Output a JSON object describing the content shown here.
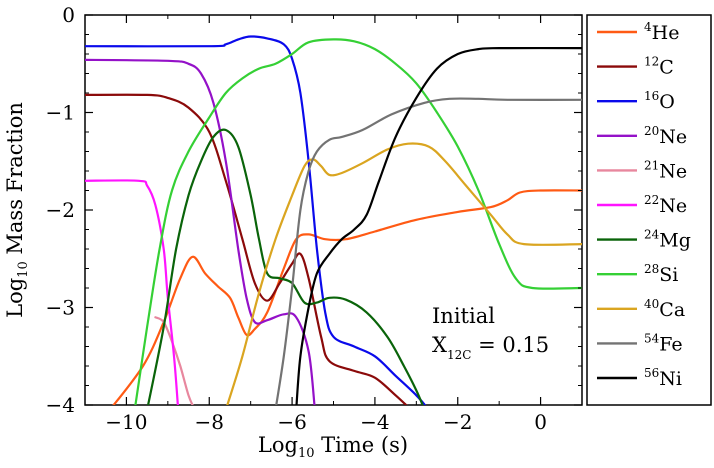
{
  "chart_data": {
    "type": "line",
    "xlabel_base": "Log",
    "xlabel_sub": "10",
    "xlabel_rest": " Time (s)",
    "ylabel_base": "Log",
    "ylabel_sub": "10",
    "ylabel_rest": " Mass Fraction",
    "xlim": [
      -11,
      1
    ],
    "ylim": [
      -4,
      0
    ],
    "xticks": [
      -10,
      -8,
      -6,
      -4,
      -2,
      0
    ],
    "xtick_labels": [
      "−10",
      "−8",
      "−6",
      "−4",
      "−2",
      "0"
    ],
    "yticks": [
      -4,
      -3,
      -2,
      -1,
      0
    ],
    "ytick_labels": [
      "−4",
      "−3",
      "−2",
      "−1",
      "0"
    ],
    "annotation": {
      "line1": "Initial",
      "x_label": "X",
      "x_sup": "12",
      "x_sub": "C",
      "value_text": " = 0.15"
    },
    "series": [
      {
        "mass": "4",
        "element": "He",
        "color": "#ff5a14",
        "points": [
          [
            -10.4,
            -4.05
          ],
          [
            -9.6,
            -3.6
          ],
          [
            -9.1,
            -3.15
          ],
          [
            -8.7,
            -2.7
          ],
          [
            -8.4,
            -2.48
          ],
          [
            -8.1,
            -2.65
          ],
          [
            -7.8,
            -2.78
          ],
          [
            -7.5,
            -2.9
          ],
          [
            -7.3,
            -3.1
          ],
          [
            -7.1,
            -3.28
          ],
          [
            -6.9,
            -3.22
          ],
          [
            -6.6,
            -3.05
          ],
          [
            -6.2,
            -2.6
          ],
          [
            -5.9,
            -2.3
          ],
          [
            -5.6,
            -2.25
          ],
          [
            -5.2,
            -2.3
          ],
          [
            -4.7,
            -2.3
          ],
          [
            -4,
            -2.22
          ],
          [
            -3,
            -2.1
          ],
          [
            -2,
            -2.02
          ],
          [
            -1.2,
            -1.97
          ],
          [
            -0.8,
            -1.9
          ],
          [
            -0.5,
            -1.82
          ],
          [
            0,
            -1.8
          ],
          [
            1,
            -1.8
          ]
        ]
      },
      {
        "mass": "12",
        "element": "C",
        "color": "#8b0a0a",
        "points": [
          [
            -11,
            -0.82
          ],
          [
            -9.5,
            -0.82
          ],
          [
            -9,
            -0.85
          ],
          [
            -8.5,
            -0.95
          ],
          [
            -8,
            -1.2
          ],
          [
            -7.6,
            -1.7
          ],
          [
            -7.2,
            -2.3
          ],
          [
            -6.9,
            -2.75
          ],
          [
            -6.6,
            -2.93
          ],
          [
            -6.3,
            -2.75
          ],
          [
            -6,
            -2.55
          ],
          [
            -5.8,
            -2.45
          ],
          [
            -5.6,
            -2.7
          ],
          [
            -5.3,
            -3.3
          ],
          [
            -5.1,
            -3.55
          ],
          [
            -4.5,
            -3.65
          ],
          [
            -4,
            -3.72
          ],
          [
            -3.5,
            -3.9
          ],
          [
            -3,
            -4.1
          ]
        ]
      },
      {
        "mass": "16",
        "element": "O",
        "color": "#0a0aeb",
        "points": [
          [
            -11,
            -0.32
          ],
          [
            -8,
            -0.32
          ],
          [
            -7.6,
            -0.3
          ],
          [
            -7.3,
            -0.25
          ],
          [
            -7,
            -0.22
          ],
          [
            -6.6,
            -0.24
          ],
          [
            -6.2,
            -0.3
          ],
          [
            -6,
            -0.45
          ],
          [
            -5.8,
            -0.8
          ],
          [
            -5.6,
            -1.5
          ],
          [
            -5.4,
            -2.4
          ],
          [
            -5.2,
            -3.05
          ],
          [
            -5,
            -3.3
          ],
          [
            -4.5,
            -3.4
          ],
          [
            -4,
            -3.5
          ],
          [
            -3.5,
            -3.7
          ],
          [
            -3,
            -3.9
          ],
          [
            -2.7,
            -4.05
          ]
        ]
      },
      {
        "mass": "20",
        "element": "Ne",
        "color": "#9411c8",
        "points": [
          [
            -11,
            -0.46
          ],
          [
            -9,
            -0.47
          ],
          [
            -8.5,
            -0.5
          ],
          [
            -8.2,
            -0.6
          ],
          [
            -7.9,
            -0.9
          ],
          [
            -7.6,
            -1.5
          ],
          [
            -7.3,
            -2.4
          ],
          [
            -7.1,
            -2.9
          ],
          [
            -6.9,
            -3.15
          ],
          [
            -6.6,
            -3.13
          ],
          [
            -6.2,
            -3.07
          ],
          [
            -5.9,
            -3.1
          ],
          [
            -5.6,
            -3.45
          ],
          [
            -5.45,
            -4.05
          ]
        ]
      },
      {
        "mass": "21",
        "element": "Ne",
        "color": "#e8879e",
        "points": [
          [
            -9.3,
            -3.1
          ],
          [
            -9.1,
            -3.15
          ],
          [
            -8.9,
            -3.35
          ],
          [
            -8.7,
            -3.6
          ],
          [
            -8.5,
            -3.9
          ],
          [
            -8.35,
            -4.05
          ]
        ]
      },
      {
        "mass": "22",
        "element": "Ne",
        "color": "#ff14ff",
        "points": [
          [
            -11,
            -1.7
          ],
          [
            -9.7,
            -1.7
          ],
          [
            -9.5,
            -1.75
          ],
          [
            -9.3,
            -1.95
          ],
          [
            -9.1,
            -2.4
          ],
          [
            -9,
            -2.9
          ],
          [
            -8.85,
            -3.5
          ],
          [
            -8.75,
            -4.05
          ]
        ]
      },
      {
        "mass": "24",
        "element": "Mg",
        "color": "#0a640a",
        "points": [
          [
            -9.5,
            -4.05
          ],
          [
            -9.1,
            -3.2
          ],
          [
            -8.8,
            -2.4
          ],
          [
            -8.5,
            -1.85
          ],
          [
            -8.2,
            -1.5
          ],
          [
            -7.9,
            -1.25
          ],
          [
            -7.6,
            -1.18
          ],
          [
            -7.3,
            -1.35
          ],
          [
            -7,
            -1.85
          ],
          [
            -6.8,
            -2.3
          ],
          [
            -6.6,
            -2.65
          ],
          [
            -6.3,
            -2.7
          ],
          [
            -6,
            -2.75
          ],
          [
            -5.7,
            -2.95
          ],
          [
            -5.4,
            -2.95
          ],
          [
            -5.1,
            -2.9
          ],
          [
            -4.7,
            -2.92
          ],
          [
            -4.2,
            -3.05
          ],
          [
            -3.7,
            -3.3
          ],
          [
            -3.3,
            -3.6
          ],
          [
            -3,
            -3.85
          ],
          [
            -2.8,
            -4.05
          ]
        ]
      },
      {
        "mass": "28",
        "element": "Si",
        "color": "#35d035",
        "points": [
          [
            -9.8,
            -4.05
          ],
          [
            -9.5,
            -3.2
          ],
          [
            -9.2,
            -2.4
          ],
          [
            -8.9,
            -1.8
          ],
          [
            -8.5,
            -1.4
          ],
          [
            -8,
            -1.05
          ],
          [
            -7.6,
            -0.8
          ],
          [
            -7.2,
            -0.65
          ],
          [
            -6.8,
            -0.55
          ],
          [
            -6.4,
            -0.5
          ],
          [
            -6,
            -0.4
          ],
          [
            -5.6,
            -0.28
          ],
          [
            -5,
            -0.25
          ],
          [
            -4.5,
            -0.27
          ],
          [
            -4,
            -0.35
          ],
          [
            -3.5,
            -0.5
          ],
          [
            -3,
            -0.7
          ],
          [
            -2.5,
            -1
          ],
          [
            -2,
            -1.35
          ],
          [
            -1.5,
            -1.8
          ],
          [
            -1,
            -2.35
          ],
          [
            -0.6,
            -2.7
          ],
          [
            -0.2,
            -2.8
          ],
          [
            1,
            -2.8
          ]
        ]
      },
      {
        "mass": "40",
        "element": "Ca",
        "color": "#daa520",
        "points": [
          [
            -7.6,
            -4.05
          ],
          [
            -7.2,
            -3.5
          ],
          [
            -6.8,
            -2.85
          ],
          [
            -6.4,
            -2.3
          ],
          [
            -6,
            -1.85
          ],
          [
            -5.7,
            -1.55
          ],
          [
            -5.5,
            -1.48
          ],
          [
            -5.3,
            -1.55
          ],
          [
            -5.1,
            -1.64
          ],
          [
            -4.8,
            -1.62
          ],
          [
            -4.3,
            -1.52
          ],
          [
            -3.7,
            -1.38
          ],
          [
            -3.2,
            -1.32
          ],
          [
            -2.7,
            -1.35
          ],
          [
            -2.3,
            -1.5
          ],
          [
            -1.8,
            -1.75
          ],
          [
            -1.2,
            -2.05
          ],
          [
            -0.8,
            -2.25
          ],
          [
            -0.4,
            -2.35
          ],
          [
            1,
            -2.35
          ]
        ]
      },
      {
        "mass": "54",
        "element": "Fe",
        "color": "#737373",
        "points": [
          [
            -6.4,
            -4.05
          ],
          [
            -6.2,
            -3.5
          ],
          [
            -6,
            -2.8
          ],
          [
            -5.8,
            -2
          ],
          [
            -5.6,
            -1.6
          ],
          [
            -5.4,
            -1.4
          ],
          [
            -5.1,
            -1.28
          ],
          [
            -4.8,
            -1.25
          ],
          [
            -4.3,
            -1.18
          ],
          [
            -3.6,
            -1.02
          ],
          [
            -2.8,
            -0.9
          ],
          [
            -2.2,
            -0.86
          ],
          [
            -1.5,
            -0.86
          ],
          [
            -0.8,
            -0.87
          ],
          [
            1,
            -0.87
          ]
        ]
      },
      {
        "mass": "56",
        "element": "Ni",
        "color": "#000000",
        "points": [
          [
            -5.9,
            -4.05
          ],
          [
            -5.8,
            -3.5
          ],
          [
            -5.6,
            -3
          ],
          [
            -5.4,
            -2.65
          ],
          [
            -5.1,
            -2.45
          ],
          [
            -4.8,
            -2.3
          ],
          [
            -4.5,
            -2.2
          ],
          [
            -4.2,
            -2.05
          ],
          [
            -3.9,
            -1.7
          ],
          [
            -3.5,
            -1.25
          ],
          [
            -3,
            -0.85
          ],
          [
            -2.5,
            -0.55
          ],
          [
            -2,
            -0.4
          ],
          [
            -1.5,
            -0.35
          ],
          [
            -1,
            -0.34
          ],
          [
            1,
            -0.34
          ]
        ]
      }
    ]
  }
}
